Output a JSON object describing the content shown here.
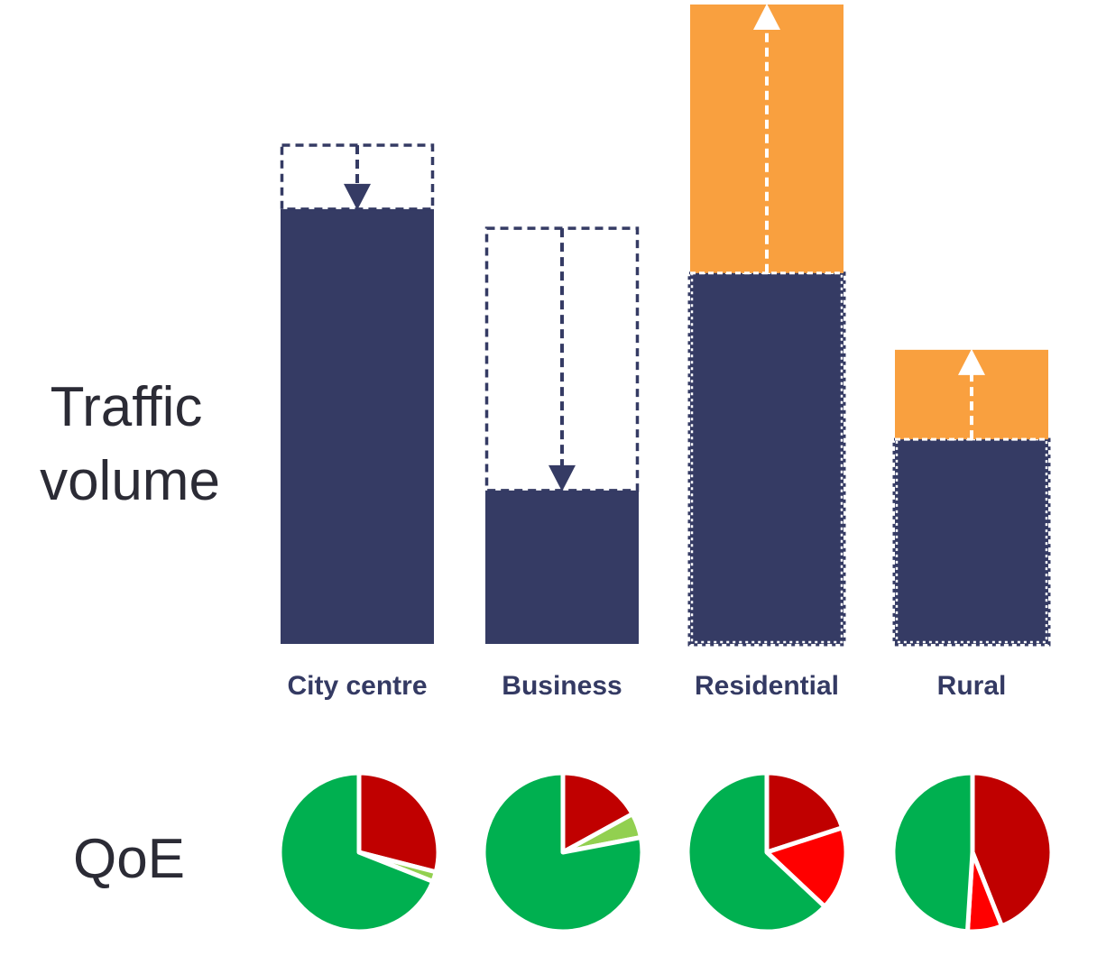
{
  "chart_data": {
    "type": "bar",
    "title": "",
    "ylabel": [
      "Traffic",
      "volume"
    ],
    "qoe_label": "QoE",
    "categories": [
      "City centre",
      "Business",
      "Residential",
      "Rural"
    ],
    "ylim": [
      0,
      100
    ],
    "series": [
      {
        "name": "",
        "values": [
          68,
          24,
          58,
          32
        ]
      },
      {
        "name": "",
        "values": [
          0,
          0,
          42,
          14
        ]
      }
    ],
    "previous_values": [
      78,
      65,
      58,
      32
    ],
    "change_direction": [
      "down",
      "down",
      "up",
      "up"
    ],
    "qoe_pies": [
      [
        {
          "value": 29,
          "color": "#c00000"
        },
        {
          "value": 2,
          "color": "#92d050"
        },
        {
          "value": 69,
          "color": "#00b050"
        }
      ],
      [
        {
          "value": 17,
          "color": "#c00000"
        },
        {
          "value": 5,
          "color": "#92d050"
        },
        {
          "value": 78,
          "color": "#00b050"
        }
      ],
      [
        {
          "value": 20,
          "color": "#c00000"
        },
        {
          "value": 17,
          "color": "#ff0000"
        },
        {
          "value": 63,
          "color": "#00b050"
        }
      ],
      [
        {
          "value": 44,
          "color": "#c00000"
        },
        {
          "value": 7,
          "color": "#ff0000"
        },
        {
          "value": 49,
          "color": "#00b050"
        }
      ]
    ],
    "colors": {
      "current": "#353b64",
      "growth": "#f9a03f",
      "divider": "#ffffff"
    },
    "grid": false,
    "legend": "none"
  }
}
